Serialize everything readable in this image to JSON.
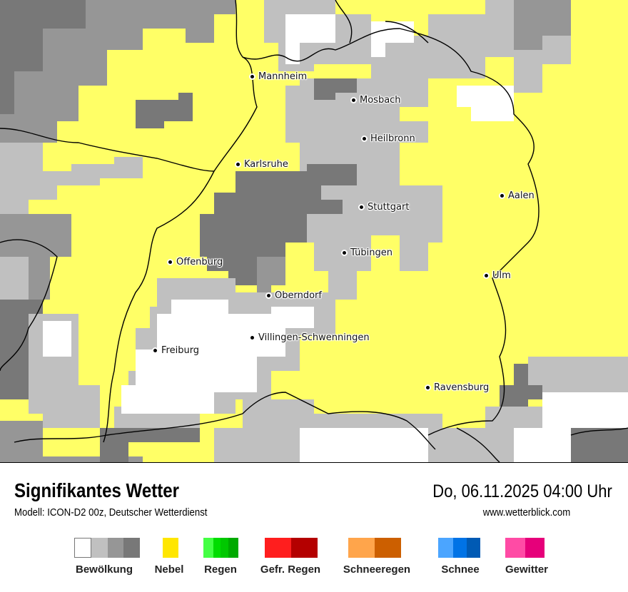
{
  "header": {
    "title": "Signifikantes Wetter",
    "subtitle": "Modell: ICON-D2 00z, Deutscher Wetterdienst",
    "datetime": "Do, 06.11.2025 04:00 Uhr",
    "website": "www.wetterblick.com"
  },
  "map": {
    "background_color": "#ffff66",
    "cities": [
      {
        "name": "Mannheim"
      },
      {
        "name": "Mosbach"
      },
      {
        "name": "Heilbronn"
      },
      {
        "name": "Karlsruhe"
      },
      {
        "name": "Aalen"
      },
      {
        "name": "Stuttgart"
      },
      {
        "name": "Tübingen"
      },
      {
        "name": "Offenburg"
      },
      {
        "name": "Ulm"
      },
      {
        "name": "Oberndorf"
      },
      {
        "name": "Villingen-Schwenningen"
      },
      {
        "name": "Freiburg"
      },
      {
        "name": "Ravensburg"
      }
    ]
  },
  "legend": [
    {
      "label": "Bewölkung",
      "colors": [
        "#ffffff",
        "#c0c0c0",
        "#969696",
        "#787878"
      ]
    },
    {
      "label": "Nebel",
      "colors": [
        "#ffe600"
      ]
    },
    {
      "label": "Regen",
      "colors": [
        "#44ff44",
        "#00dd00",
        "#00c800",
        "#00aa00"
      ]
    },
    {
      "label": "Gefr. Regen",
      "colors": [
        "#ff1e1e",
        "#b40000"
      ]
    },
    {
      "label": "Schneeregen",
      "colors": [
        "#ffa54b",
        "#cc5f00"
      ]
    },
    {
      "label": "Schnee",
      "colors": [
        "#4ba5ff",
        "#0073e6",
        "#005ab4"
      ]
    },
    {
      "label": "Gewitter",
      "colors": [
        "#ff4ba5",
        "#e6007a"
      ]
    }
  ]
}
